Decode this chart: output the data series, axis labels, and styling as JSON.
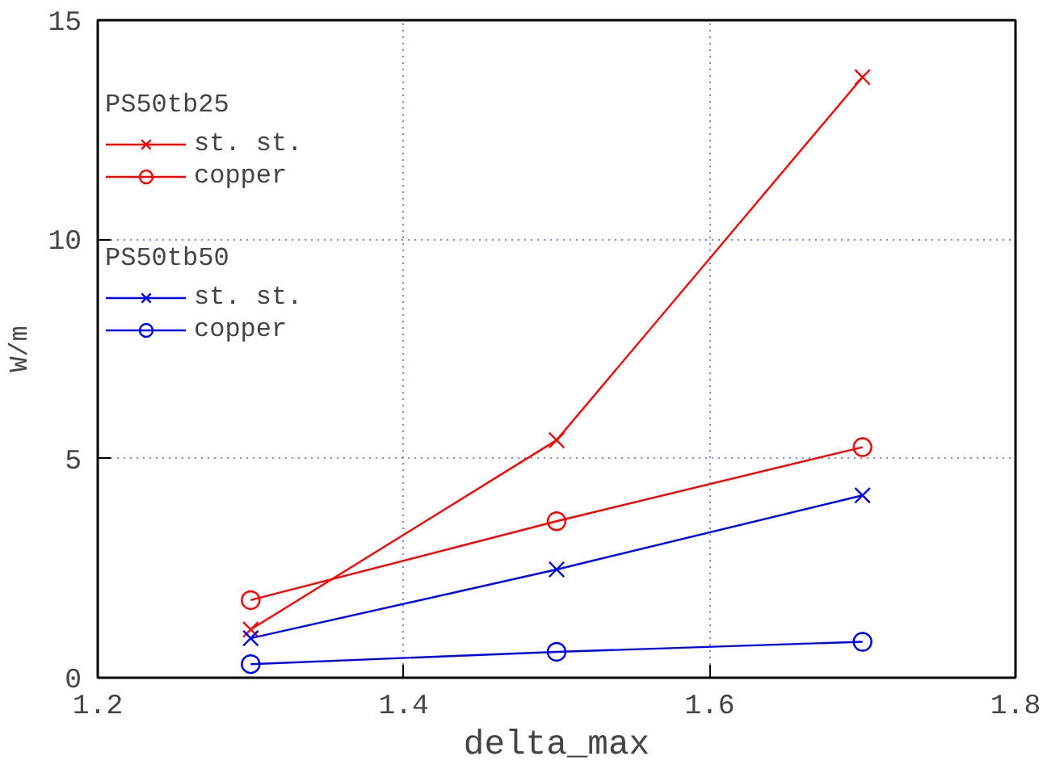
{
  "chart_data": {
    "type": "line",
    "xlabel": "delta_max",
    "ylabel": "W/m",
    "legend_title": [
      "PS50tb25",
      "PS50tb50"
    ],
    "x": [
      1.3,
      1.5,
      1.7
    ],
    "series": [
      {
        "name": "st. st.",
        "color": "#ff0000",
        "marker": "cross",
        "values": [
          1.1,
          5.42,
          13.7
        ]
      },
      {
        "name": "copper",
        "color": "#ff0000",
        "marker": "circle",
        "values": [
          1.77,
          3.57,
          5.26
        ]
      },
      {
        "name": "st. st.",
        "color": "#0000ff",
        "marker": "cross",
        "values": [
          0.9,
          2.47,
          4.16
        ]
      },
      {
        "name": "copper",
        "color": "#0000ff",
        "marker": "circle",
        "values": [
          0.31,
          0.59,
          0.82
        ]
      }
    ],
    "xlim": [
      1.2,
      1.8
    ],
    "xticks": [
      1.2,
      1.4,
      1.6,
      1.8
    ],
    "ylim": [
      0,
      15
    ],
    "yticks": [
      0,
      5,
      10,
      15
    ],
    "grid": true,
    "legend": "top left",
    "line_style": "solid"
  }
}
